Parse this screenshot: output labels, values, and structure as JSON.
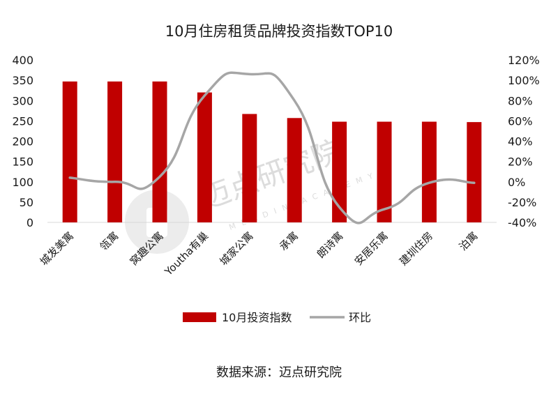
{
  "chart_data": {
    "type": "bar+line",
    "title": "10月住房租赁品牌投资指数TOP10",
    "categories": [
      "城发美寓",
      "瓴寓",
      "窝趣公寓",
      "Youtha有巢",
      "城家公寓",
      "承寓",
      "朗诗寓",
      "安居乐寓",
      "建圳住房",
      "泊寓"
    ],
    "series": [
      {
        "name": "10月投资指数",
        "type": "bar",
        "axis": "left",
        "color": "#c00000",
        "values": [
          347,
          347,
          347,
          320,
          267,
          257,
          248,
          248,
          248,
          247
        ]
      },
      {
        "name": "环比",
        "type": "line",
        "axis": "right",
        "color": "#a6a6a6",
        "values": [
          4,
          0,
          5,
          85,
          106,
          80,
          -25,
          -27,
          -1,
          -1
        ]
      }
    ],
    "y_left": {
      "min": 0,
      "max": 400,
      "step": 50
    },
    "y_right": {
      "min": -40,
      "max": 120,
      "step": 20,
      "unit": "%"
    },
    "legend": {
      "position": "bottom"
    },
    "grid": false
  },
  "watermark": {
    "text": "迈点研究院",
    "sub": "MEADIN ACADEMY",
    "logo": "meadin-logo-icon"
  },
  "source": "数据来源：迈点研究院"
}
